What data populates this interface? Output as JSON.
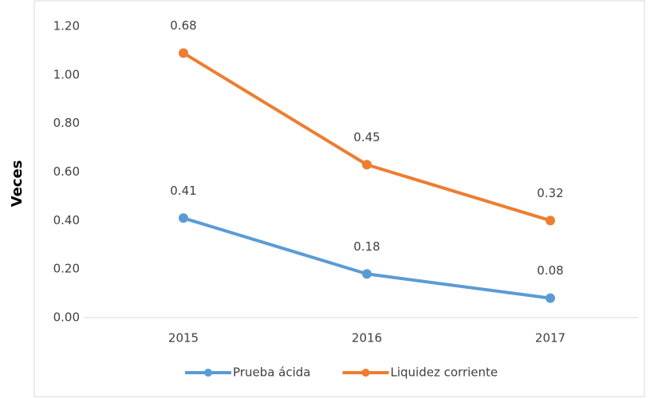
{
  "chart_data": {
    "type": "line",
    "stacked": true,
    "y_label": "Veces",
    "categories": [
      "2015",
      "2016",
      "2017"
    ],
    "series": [
      {
        "name": "Prueba ácida",
        "color": "#5b9bd5",
        "values": [
          0.41,
          0.18,
          0.08
        ]
      },
      {
        "name": "Liquidez corriente",
        "color": "#ed7d31",
        "values": [
          0.68,
          0.45,
          0.32
        ]
      }
    ],
    "ylim": [
      0,
      1.2
    ],
    "yticks": [
      {
        "value": 0,
        "label": "0.00"
      },
      {
        "value": 0.2,
        "label": "0.20"
      },
      {
        "value": 0.4,
        "label": "0.40"
      },
      {
        "value": 0.6,
        "label": "0.60"
      },
      {
        "value": 0.8,
        "label": "0.80"
      },
      {
        "value": 1.0,
        "label": "1.00"
      },
      {
        "value": 1.2,
        "label": "1.20"
      }
    ],
    "grid": false,
    "legend": "bottom"
  }
}
